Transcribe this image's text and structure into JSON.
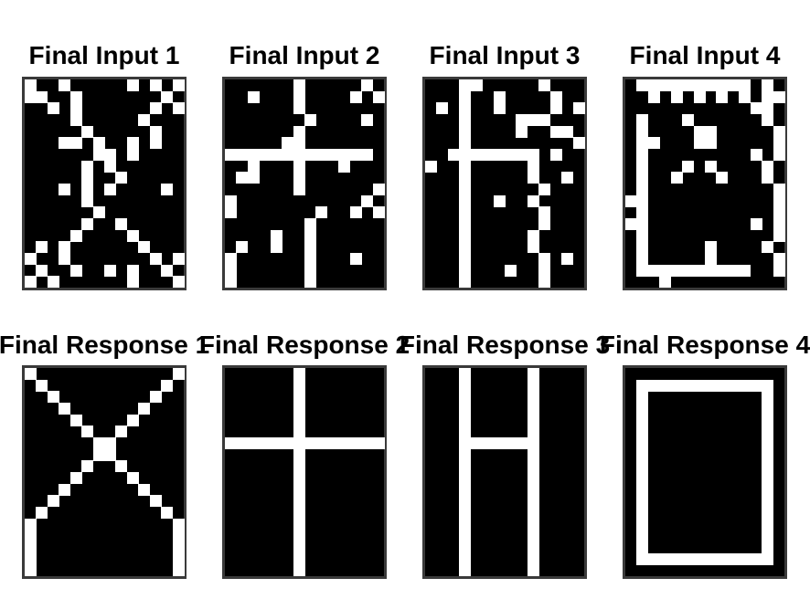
{
  "colors": {
    "on": "#ffffff",
    "off": "#000000",
    "frame": "#3a3a3a"
  },
  "panels": [
    {
      "title": "Final Input  1",
      "pattern": [
        "#..#.....#.#.#",
        "##..#.......#.",
        "..#.#......#.#",
        "....#.....#...",
        ".....#.....#..",
        "...##.#..#.#..",
        "......##.#....",
        ".....#.#......",
        ".....#..#.....",
        "...#.#.#....#.",
        ".....#........",
        "......#.......",
        ".....#..#.....",
        "....#....#....",
        ".#.#......#...",
        "#..#.......#.#",
        ".#..#..#.#..#.",
        "#.#......#...#"
      ]
    },
    {
      "title": "Final Input  2",
      "pattern": [
        "......#.....#.",
        "..#...#....#.#",
        "......#.......",
        ".......#....#.",
        "......#.......",
        ".....##.......",
        "#############.",
        "..#...#...#...",
        ".##...#.......",
        "......#......#",
        "#...........#.",
        "#.......#..#.#",
        ".......#......",
        "....#..#......",
        ".#..#..#......",
        "#......#...#..",
        "#......#......",
        "#......#......"
      ]
    },
    {
      "title": "Final Input  3",
      "pattern": [
        "...##.....#...",
        "...#..#....#..",
        ".#.#..#....#.#",
        "...#....###...",
        "...#....#..##.",
        "...#.........#",
        "..########.#..",
        "#..#.....#....",
        "...#.....#..#.",
        "...#......#...",
        "...#..#..#....",
        "...#......#...",
        "...#......#...",
        "...#.....#....",
        "...#.....#....",
        "...#......#.#.",
        "...#...#..#...",
        "...#......#..."
      ]
    },
    {
      "title": "Final Input  4",
      "pattern": [
        ".##########.#.",
        "..#.#.#.#.#.##",
        "...........##.",
        ".#...#......#.",
        ".#....##.....#",
        ".##...##.....#",
        ".#.........#.#",
        ".#...#.#....#.",
        ".#..#...#...#.",
        ".#...........#",
        "##...........#",
        ".#...........#",
        "##.........#.#",
        ".#...........#",
        ".#.....#....#.",
        ".#.....#.....#",
        ".##########..#",
        "...#.........."
      ]
    },
    {
      "title": "Final Response  1",
      "pattern": [
        "#............#",
        ".#..........#.",
        "..#........#..",
        "...#......#...",
        "....#....#....",
        ".....#..#.....",
        "......##......",
        "......##......",
        ".....#..#.....",
        "....#....#....",
        "...#......#...",
        "..#........#..",
        ".#..........#.",
        "#............#",
        "#............#",
        "#............#",
        "#............#",
        "#............#"
      ]
    },
    {
      "title": "Final Response  2",
      "pattern": [
        "......#.......",
        "......#.......",
        "......#.......",
        "......#.......",
        "......#.......",
        "......#.......",
        "##############",
        "......#.......",
        "......#.......",
        "......#.......",
        "......#.......",
        "......#.......",
        "......#.......",
        "......#.......",
        "......#.......",
        "......#.......",
        "......#.......",
        "......#......."
      ]
    },
    {
      "title": "Final Response  3",
      "pattern": [
        "...#.....#....",
        "...#.....#....",
        "...#.....#....",
        "...#.....#....",
        "...#.....#....",
        "...#.....#....",
        "...#######....",
        "...#.....#....",
        "...#.....#....",
        "...#.....#....",
        "...#.....#....",
        "...#.....#....",
        "...#.....#....",
        "...#.....#....",
        "...#.....#....",
        "...#.....#....",
        "...#.....#....",
        "...#.....#...."
      ]
    },
    {
      "title": "Final Response  4",
      "pattern": [
        "..............",
        ".############.",
        ".#..........#.",
        ".#..........#.",
        ".#..........#.",
        ".#..........#.",
        ".#..........#.",
        ".#..........#.",
        ".#..........#.",
        ".#..........#.",
        ".#..........#.",
        ".#..........#.",
        ".#..........#.",
        ".#..........#.",
        ".#..........#.",
        ".#..........#.",
        ".############.",
        ".............."
      ]
    }
  ]
}
